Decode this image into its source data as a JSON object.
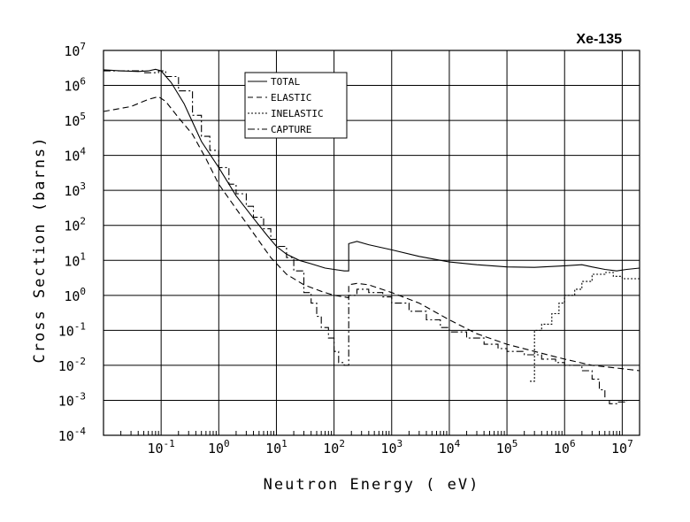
{
  "chart_data": {
    "type": "line",
    "title": "Xe-135",
    "xlabel": "Neutron Energy ( eV)",
    "ylabel": "Cross Section (barns)",
    "x_scale": "log",
    "y_scale": "log",
    "xlim": [
      0.01,
      20000000
    ],
    "ylim": [
      0.0001,
      10000000
    ],
    "grid": true,
    "legend_position": "top-center",
    "x_ticks": [
      {
        "base": "10",
        "exp": "-1",
        "value": 0.1
      },
      {
        "base": "10",
        "exp": "0",
        "value": 1
      },
      {
        "base": "10",
        "exp": "1",
        "value": 10
      },
      {
        "base": "10",
        "exp": "2",
        "value": 100
      },
      {
        "base": "10",
        "exp": "3",
        "value": 1000
      },
      {
        "base": "10",
        "exp": "4",
        "value": 10000
      },
      {
        "base": "10",
        "exp": "5",
        "value": 100000
      },
      {
        "base": "10",
        "exp": "6",
        "value": 1000000
      },
      {
        "base": "10",
        "exp": "7",
        "value": 10000000
      }
    ],
    "y_ticks": [
      {
        "base": "10",
        "exp": "-4",
        "value": 0.0001
      },
      {
        "base": "10",
        "exp": "-3",
        "value": 0.001
      },
      {
        "base": "10",
        "exp": "-2",
        "value": 0.01
      },
      {
        "base": "10",
        "exp": "-1",
        "value": 0.1
      },
      {
        "base": "10",
        "exp": "0",
        "value": 1
      },
      {
        "base": "10",
        "exp": "1",
        "value": 10
      },
      {
        "base": "10",
        "exp": "2",
        "value": 100
      },
      {
        "base": "10",
        "exp": "3",
        "value": 1000
      },
      {
        "base": "10",
        "exp": "4",
        "value": 10000
      },
      {
        "base": "10",
        "exp": "5",
        "value": 100000
      },
      {
        "base": "10",
        "exp": "6",
        "value": 1000000
      },
      {
        "base": "10",
        "exp": "7",
        "value": 10000000
      }
    ],
    "series": [
      {
        "name": "TOTAL",
        "dash": "solid",
        "step": false,
        "points": [
          [
            0.01,
            2800000
          ],
          [
            0.02,
            2600000
          ],
          [
            0.04,
            2500000
          ],
          [
            0.06,
            2600000
          ],
          [
            0.08,
            2900000
          ],
          [
            0.1,
            2600000
          ],
          [
            0.15,
            1200000
          ],
          [
            0.25,
            300000
          ],
          [
            0.35,
            90000
          ],
          [
            0.5,
            25000
          ],
          [
            1,
            4500
          ],
          [
            2,
            700
          ],
          [
            4,
            160
          ],
          [
            7,
            50
          ],
          [
            10,
            25
          ],
          [
            15,
            15
          ],
          [
            25,
            10
          ],
          [
            40,
            8
          ],
          [
            70,
            6
          ],
          [
            100,
            5.5
          ],
          [
            150,
            5
          ],
          [
            180,
            5
          ],
          [
            180,
            30
          ],
          [
            250,
            35
          ],
          [
            400,
            28
          ],
          [
            1000,
            20
          ],
          [
            3000,
            13
          ],
          [
            10000,
            9
          ],
          [
            30000,
            7.5
          ],
          [
            100000,
            6.5
          ],
          [
            300000,
            6.3
          ],
          [
            1000000,
            7
          ],
          [
            2000000,
            7.5
          ],
          [
            3000000,
            6.5
          ],
          [
            5000000,
            5.5
          ],
          [
            8000000,
            5
          ],
          [
            12000000,
            5.5
          ],
          [
            20000000,
            6
          ]
        ]
      },
      {
        "name": "ELASTIC",
        "dash": "dashed",
        "step": false,
        "points": [
          [
            0.01,
            180000
          ],
          [
            0.03,
            250000
          ],
          [
            0.06,
            400000
          ],
          [
            0.09,
            480000
          ],
          [
            0.12,
            350000
          ],
          [
            0.2,
            120000
          ],
          [
            0.35,
            40000
          ],
          [
            0.6,
            8000
          ],
          [
            1,
            1500
          ],
          [
            2,
            300
          ],
          [
            4,
            60
          ],
          [
            8,
            12
          ],
          [
            15,
            4
          ],
          [
            30,
            2
          ],
          [
            60,
            1.3
          ],
          [
            100,
            1
          ],
          [
            150,
            0.9
          ],
          [
            180,
            0.85
          ],
          [
            180,
            2
          ],
          [
            250,
            2.2
          ],
          [
            400,
            2
          ],
          [
            1000,
            1.2
          ],
          [
            3000,
            0.6
          ],
          [
            10000,
            0.2
          ],
          [
            30000,
            0.08
          ],
          [
            100000,
            0.04
          ],
          [
            300000,
            0.025
          ],
          [
            1000000,
            0.015
          ],
          [
            3000000,
            0.01
          ],
          [
            10000000,
            0.008
          ],
          [
            20000000,
            0.007
          ]
        ]
      },
      {
        "name": "INELASTIC",
        "dash": "dotted",
        "step": true,
        "points": [
          [
            250000,
            0.0035
          ],
          [
            300000,
            0.0035
          ],
          [
            300000,
            0.1
          ],
          [
            400000,
            0.15
          ],
          [
            600000,
            0.3
          ],
          [
            800000,
            0.6
          ],
          [
            1000000,
            1
          ],
          [
            1500000,
            1.5
          ],
          [
            2000000,
            2.5
          ],
          [
            3000000,
            4
          ],
          [
            5000000,
            4.5
          ],
          [
            7000000,
            3.5
          ],
          [
            10000000,
            3
          ],
          [
            20000000,
            3.5
          ]
        ]
      },
      {
        "name": "CAPTURE",
        "dash": "dashdot",
        "step": true,
        "points": [
          [
            0.01,
            2600000
          ],
          [
            0.05,
            2300000
          ],
          [
            0.09,
            2600000
          ],
          [
            0.12,
            1800000
          ],
          [
            0.2,
            700000
          ],
          [
            0.35,
            140000
          ],
          [
            0.5,
            35000
          ],
          [
            0.7,
            14000
          ],
          [
            1,
            4500
          ],
          [
            1.5,
            1500
          ],
          [
            2,
            800
          ],
          [
            3,
            350
          ],
          [
            4,
            170
          ],
          [
            6,
            80
          ],
          [
            8,
            40
          ],
          [
            10,
            25
          ],
          [
            15,
            12
          ],
          [
            20,
            5
          ],
          [
            30,
            1.2
          ],
          [
            40,
            0.6
          ],
          [
            50,
            0.25
          ],
          [
            60,
            0.12
          ],
          [
            80,
            0.06
          ],
          [
            100,
            0.025
          ],
          [
            120,
            0.012
          ],
          [
            150,
            0.01
          ],
          [
            160,
            0.01
          ],
          [
            180,
            0.01
          ],
          [
            180,
            1
          ],
          [
            250,
            1.5
          ],
          [
            400,
            1.2
          ],
          [
            700,
            0.9
          ],
          [
            1000,
            0.6
          ],
          [
            2000,
            0.35
          ],
          [
            4000,
            0.2
          ],
          [
            7000,
            0.12
          ],
          [
            10000,
            0.09
          ],
          [
            20000,
            0.06
          ],
          [
            40000,
            0.04
          ],
          [
            70000,
            0.03
          ],
          [
            100000,
            0.025
          ],
          [
            200000,
            0.02
          ],
          [
            400000,
            0.015
          ],
          [
            700000,
            0.012
          ],
          [
            1000000,
            0.01
          ],
          [
            2000000,
            0.007
          ],
          [
            3000000,
            0.004
          ],
          [
            4000000,
            0.002
          ],
          [
            5000000,
            0.001
          ],
          [
            6000000,
            0.0008
          ],
          [
            8000000,
            0.0009
          ],
          [
            12000000,
            0.001
          ],
          [
            20000000,
            0.001
          ]
        ]
      }
    ]
  }
}
